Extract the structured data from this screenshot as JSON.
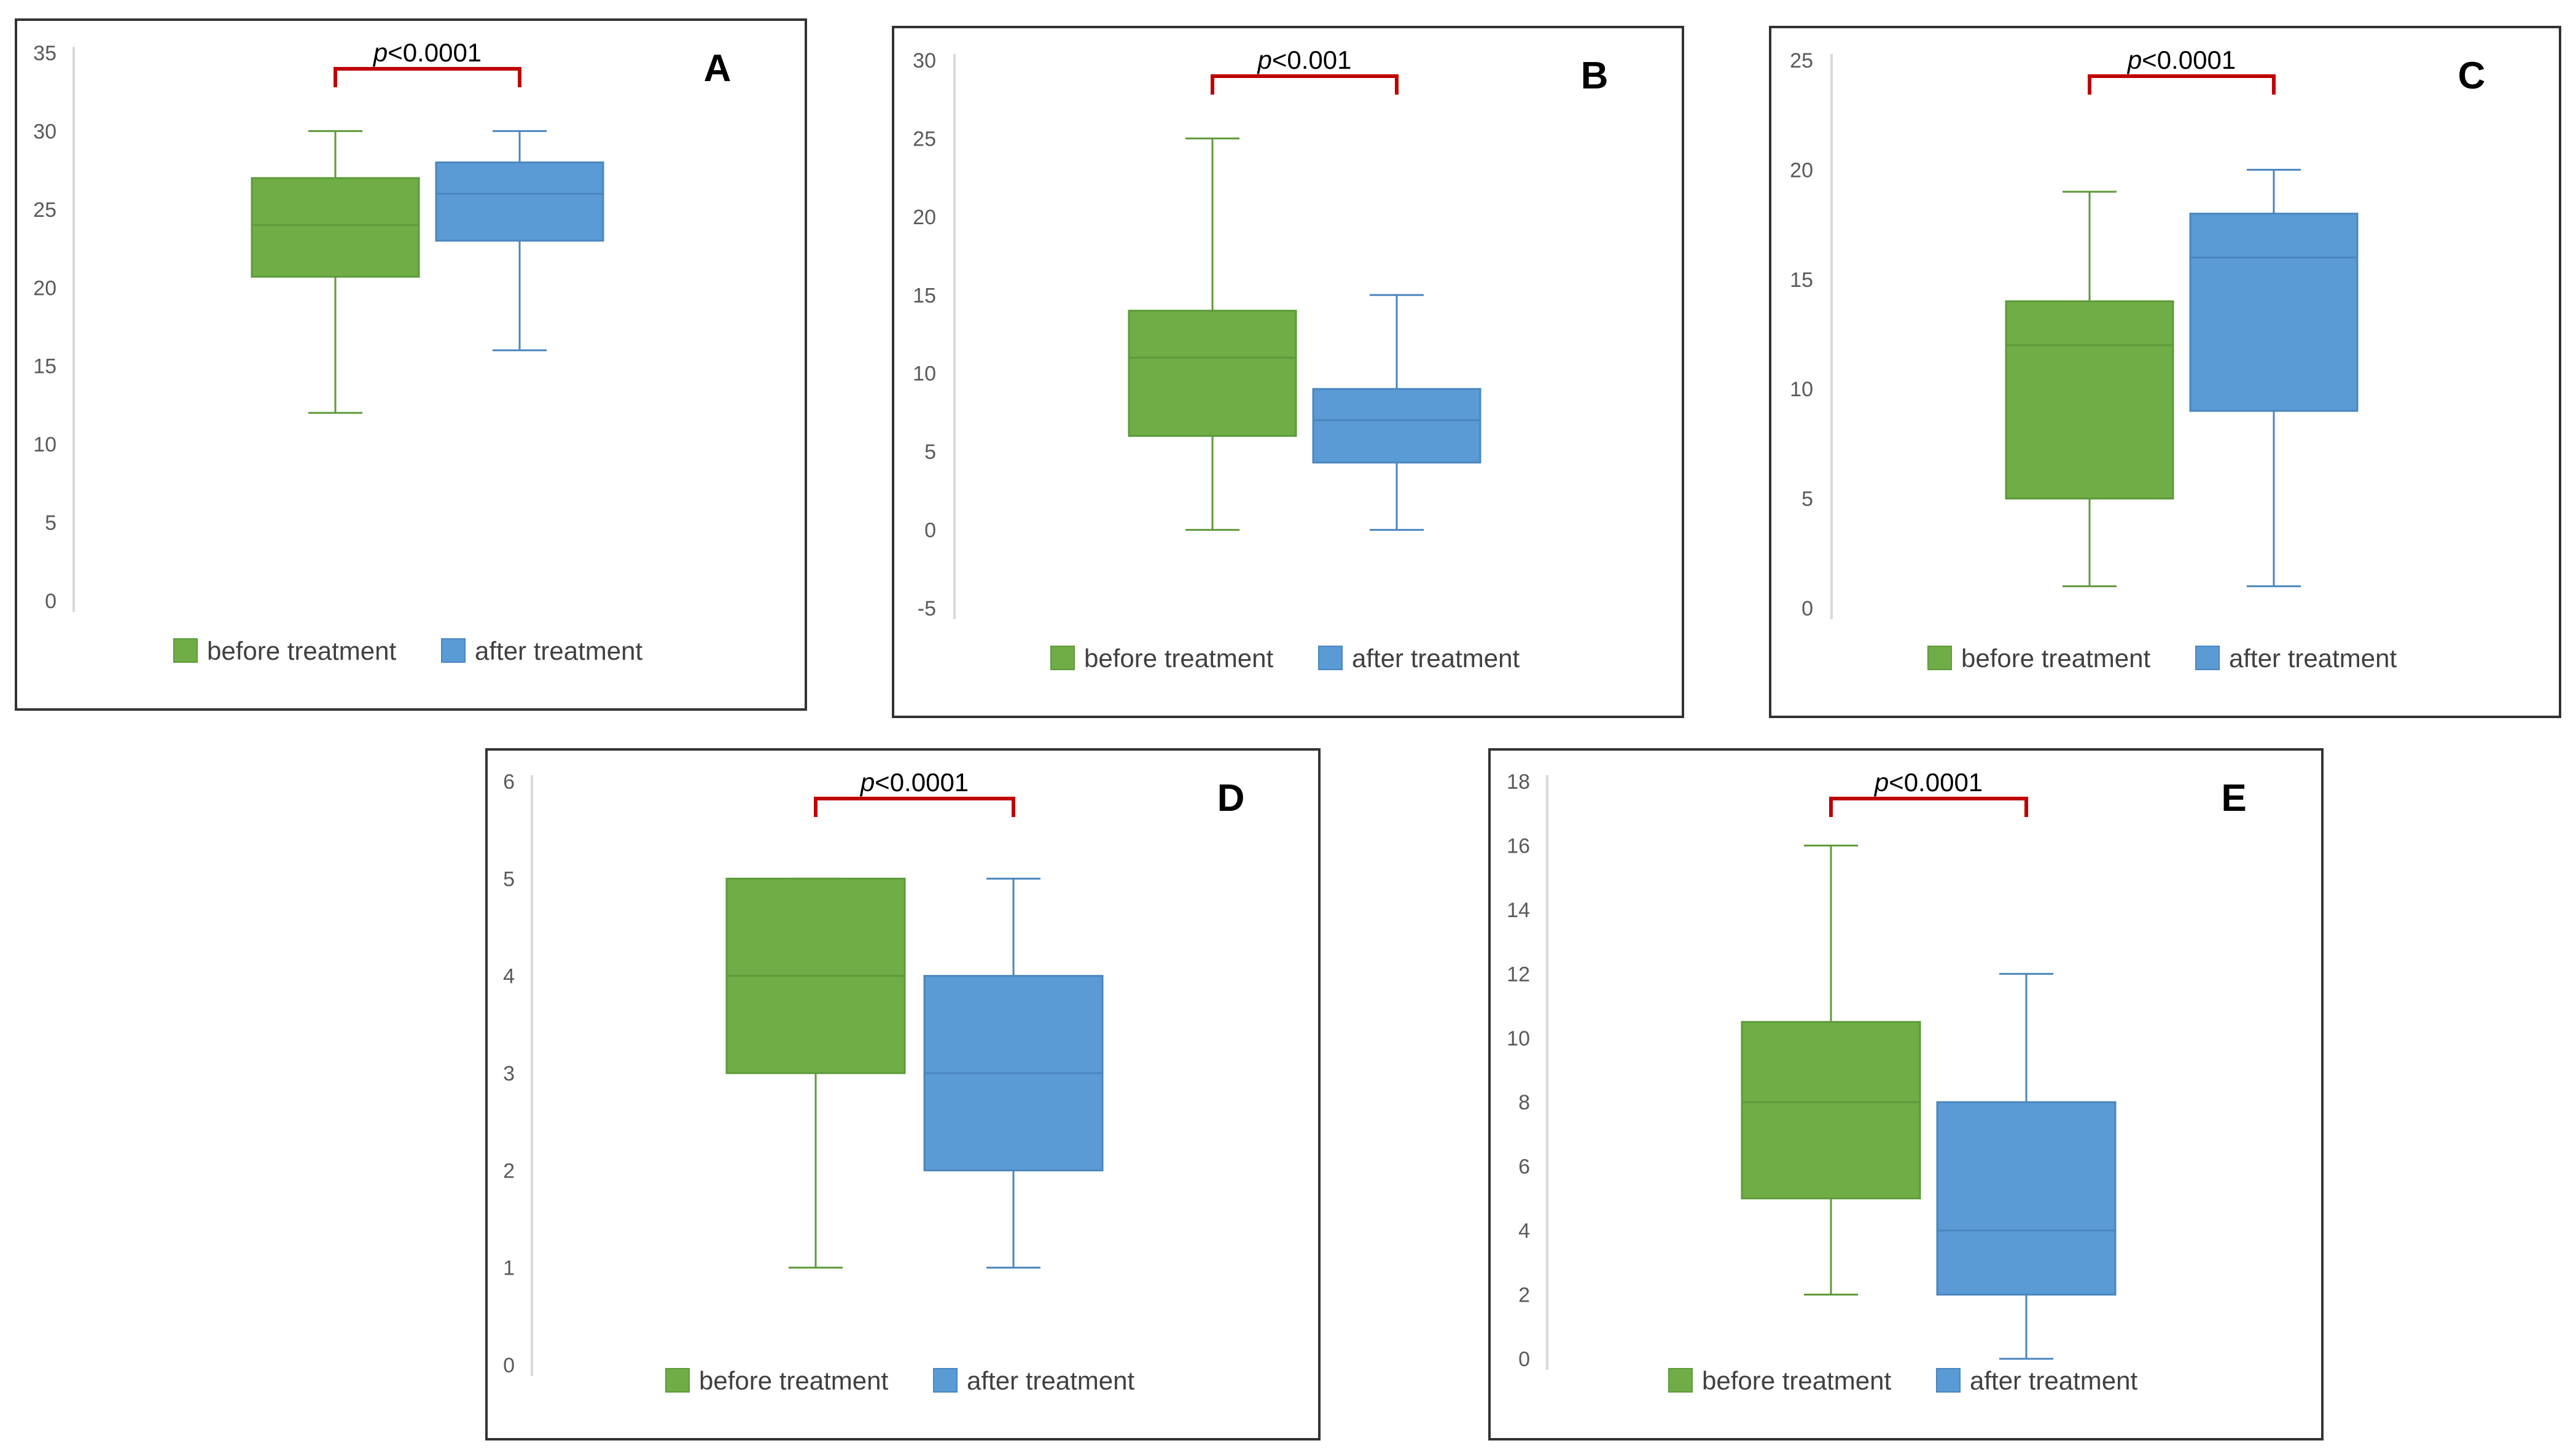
{
  "colors": {
    "before": "#70AD47",
    "before_edge": "#5E9A3A",
    "after": "#5B9BD5",
    "after_edge": "#4A86BE",
    "bracket": "#C00000",
    "axis": "#D9D9D9",
    "tick_text": "#595959",
    "legend_text": "#404040"
  },
  "legend": {
    "before_label": "before treatment",
    "after_label": "after treatment"
  },
  "chart_data": [
    {
      "type": "box",
      "panel_label": "A",
      "annotation": {
        "italic": "p",
        "rest": "<0.0001"
      },
      "ylim": [
        0,
        35
      ],
      "yticks": [
        0,
        5,
        10,
        15,
        20,
        25,
        30,
        35
      ],
      "series": [
        {
          "name": "before treatment",
          "min": 12,
          "q1": 20.7,
          "median": 24,
          "q3": 27,
          "max": 30
        },
        {
          "name": "after treatment",
          "min": 16,
          "q1": 23,
          "median": 26,
          "q3": 28,
          "max": 30
        }
      ]
    },
    {
      "type": "box",
      "panel_label": "B",
      "annotation": {
        "italic": "p",
        "rest": "<0.001"
      },
      "ylim": [
        -5,
        30
      ],
      "yticks": [
        -5,
        0,
        5,
        10,
        15,
        20,
        25,
        30
      ],
      "series": [
        {
          "name": "before treatment",
          "min": 0,
          "q1": 6,
          "median": 11,
          "q3": 14,
          "max": 25
        },
        {
          "name": "after treatment",
          "min": 0,
          "q1": 4.3,
          "median": 7,
          "q3": 9,
          "max": 15
        }
      ]
    },
    {
      "type": "box",
      "panel_label": "C",
      "annotation": {
        "italic": "p",
        "rest": "<0.0001"
      },
      "ylim": [
        0,
        25
      ],
      "yticks": [
        0,
        5,
        10,
        15,
        20,
        25
      ],
      "series": [
        {
          "name": "before treatment",
          "min": 1,
          "q1": 5,
          "median": 12,
          "q3": 14,
          "max": 19
        },
        {
          "name": "after treatment",
          "min": 1,
          "q1": 9,
          "median": 16,
          "q3": 18,
          "max": 20
        }
      ]
    },
    {
      "type": "box",
      "panel_label": "D",
      "annotation": {
        "italic": "p",
        "rest": "<0.0001"
      },
      "ylim": [
        0,
        6
      ],
      "yticks": [
        0,
        1,
        2,
        3,
        4,
        5,
        6
      ],
      "series": [
        {
          "name": "before treatment",
          "min": 1,
          "q1": 3,
          "median": 4,
          "q3": 5,
          "max": 5
        },
        {
          "name": "after treatment",
          "min": 1,
          "q1": 2,
          "median": 3,
          "q3": 4,
          "max": 5
        }
      ]
    },
    {
      "type": "box",
      "panel_label": "E",
      "annotation": {
        "italic": "p",
        "rest": "<0.0001"
      },
      "ylim": [
        0,
        18
      ],
      "yticks": [
        0,
        2,
        4,
        6,
        8,
        10,
        12,
        14,
        16,
        18
      ],
      "series": [
        {
          "name": "before treatment",
          "min": 2,
          "q1": 5,
          "median": 8,
          "q3": 10.5,
          "max": 16
        },
        {
          "name": "after treatment",
          "min": 0,
          "q1": 2,
          "median": 4,
          "q3": 8,
          "max": 12
        }
      ]
    }
  ]
}
